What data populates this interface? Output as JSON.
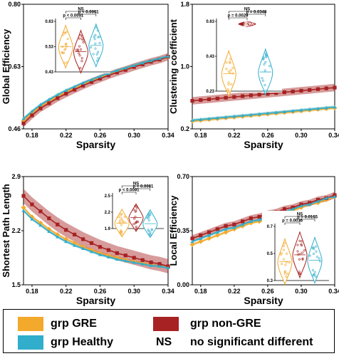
{
  "colors": {
    "gre": "#f3a92c",
    "nongre": "#a72222",
    "healthy": "#30aecb"
  },
  "chart_data": [
    {
      "type": "line",
      "panel": "global-efficiency",
      "xlabel": "Sparsity",
      "ylabel": "Global Efficiency",
      "xlim": [
        0.17,
        0.34
      ],
      "ylim": [
        0.46,
        0.8
      ],
      "xticks": [
        "0.18",
        "0.22",
        "0.26",
        "0.30",
        "0.34"
      ],
      "yticks": [
        "0.46",
        "0.63",
        "0.80"
      ],
      "x": [
        0.17,
        0.18,
        0.19,
        0.2,
        0.21,
        0.22,
        0.23,
        0.24,
        0.25,
        0.26,
        0.27,
        0.28,
        0.29,
        0.3,
        0.31,
        0.32,
        0.33,
        0.34
      ],
      "series": [
        {
          "name": "grp GRE",
          "values": [
            0.482,
            0.503,
            0.521,
            0.535,
            0.549,
            0.561,
            0.572,
            0.582,
            0.592,
            0.601,
            0.609,
            0.617,
            0.624,
            0.631,
            0.638,
            0.644,
            0.65,
            0.656
          ]
        },
        {
          "name": "grp non-GRE",
          "values": [
            0.475,
            0.497,
            0.516,
            0.53,
            0.544,
            0.556,
            0.567,
            0.578,
            0.588,
            0.597,
            0.606,
            0.614,
            0.621,
            0.629,
            0.636,
            0.643,
            0.649,
            0.657
          ]
        },
        {
          "name": "grp Healthy",
          "values": [
            0.488,
            0.508,
            0.526,
            0.54,
            0.553,
            0.565,
            0.575,
            0.585,
            0.594,
            0.603,
            0.611,
            0.619,
            0.626,
            0.633,
            0.64,
            0.646,
            0.652,
            0.658
          ]
        }
      ],
      "inset": {
        "ylim": [
          0.43,
          0.63
        ],
        "yticks": [
          "0.43",
          "0.53",
          "0.63"
        ],
        "medians": [
          0.53,
          0.51,
          0.535
        ],
        "annotations": [
          "NS",
          "p < 0.0001",
          "p < 0.0001"
        ]
      }
    },
    {
      "type": "line",
      "panel": "clustering-coefficient",
      "xlabel": "Sparsity",
      "ylabel": "Clustering coefficient",
      "xlim": [
        0.17,
        0.34
      ],
      "ylim": [
        0.2,
        1.8
      ],
      "xticks": [
        "0.18",
        "0.22",
        "0.26",
        "0.30",
        "0.34"
      ],
      "yticks": [
        "0.2",
        "1.0",
        "1.8"
      ],
      "x": [
        0.17,
        0.18,
        0.19,
        0.2,
        0.21,
        0.22,
        0.23,
        0.24,
        0.25,
        0.26,
        0.27,
        0.28,
        0.29,
        0.3,
        0.31,
        0.32,
        0.33,
        0.34
      ],
      "series": [
        {
          "name": "grp GRE",
          "values": [
            0.3,
            0.31,
            0.32,
            0.33,
            0.34,
            0.35,
            0.36,
            0.37,
            0.38,
            0.39,
            0.4,
            0.41,
            0.42,
            0.43,
            0.44,
            0.45,
            0.46,
            0.47
          ]
        },
        {
          "name": "grp non-GRE",
          "values": [
            0.56,
            0.57,
            0.58,
            0.59,
            0.6,
            0.61,
            0.62,
            0.63,
            0.64,
            0.65,
            0.66,
            0.67,
            0.68,
            0.69,
            0.7,
            0.71,
            0.72,
            0.73
          ]
        },
        {
          "name": "grp Healthy",
          "values": [
            0.31,
            0.32,
            0.33,
            0.34,
            0.35,
            0.36,
            0.37,
            0.38,
            0.39,
            0.4,
            0.41,
            0.42,
            0.43,
            0.44,
            0.45,
            0.46,
            0.47,
            0.48
          ]
        }
      ],
      "inset": {
        "ylim": [
          0.23,
          0.63
        ],
        "yticks": [
          "0.23",
          "0.43",
          "0.63"
        ],
        "medians": [
          0.33,
          0.615,
          0.34
        ],
        "annotations": [
          "NS",
          "p = 0.0020",
          "p = 0.0348"
        ]
      }
    },
    {
      "type": "line",
      "panel": "shortest-path-length",
      "xlabel": "Sparsity",
      "ylabel": "Shortest Path Length",
      "xlim": [
        0.17,
        0.34
      ],
      "ylim": [
        1.5,
        2.9
      ],
      "xticks": [
        "0.18",
        "0.22",
        "0.26",
        "0.30",
        "0.34"
      ],
      "yticks": [
        "1.5",
        "2.2",
        "2.9"
      ],
      "x": [
        0.17,
        0.18,
        0.19,
        0.2,
        0.21,
        0.22,
        0.23,
        0.24,
        0.25,
        0.26,
        0.27,
        0.28,
        0.29,
        0.3,
        0.31,
        0.32,
        0.33,
        0.34
      ],
      "series": [
        {
          "name": "grp GRE",
          "values": [
            2.5,
            2.38,
            2.3,
            2.22,
            2.15,
            2.09,
            2.04,
            1.99,
            1.95,
            1.91,
            1.88,
            1.85,
            1.82,
            1.8,
            1.78,
            1.76,
            1.74,
            1.73
          ]
        },
        {
          "name": "grp non-GRE",
          "values": [
            2.65,
            2.54,
            2.45,
            2.36,
            2.28,
            2.21,
            2.15,
            2.09,
            2.04,
            1.99,
            1.95,
            1.91,
            1.88,
            1.85,
            1.82,
            1.79,
            1.77,
            1.74
          ]
        },
        {
          "name": "grp Healthy",
          "values": [
            2.46,
            2.35,
            2.27,
            2.19,
            2.12,
            2.06,
            2.01,
            1.97,
            1.93,
            1.89,
            1.86,
            1.83,
            1.81,
            1.79,
            1.77,
            1.75,
            1.74,
            1.72
          ]
        }
      ],
      "inset": {
        "ylim": [
          1.9,
          2.5
        ],
        "yticks": [
          "1.9",
          "2.2",
          "2.5"
        ],
        "medians": [
          2.0,
          2.1,
          1.99
        ],
        "annotations": [
          "NS",
          "p < 0.0001",
          "p < 0.0001"
        ]
      }
    },
    {
      "type": "line",
      "panel": "local-efficiency",
      "xlabel": "Sparsity",
      "ylabel": "Local Efficiency",
      "xlim": [
        0.17,
        0.34
      ],
      "ylim": [
        0.0,
        0.7
      ],
      "xticks": [
        "0.18",
        "0.22",
        "0.26",
        "0.30",
        "0.34"
      ],
      "yticks": [
        "0.00",
        "0.35",
        "0.70"
      ],
      "x": [
        0.17,
        0.18,
        0.19,
        0.2,
        0.21,
        0.22,
        0.23,
        0.24,
        0.25,
        0.26,
        0.27,
        0.28,
        0.29,
        0.3,
        0.31,
        0.32,
        0.33,
        0.34
      ],
      "series": [
        {
          "name": "grp GRE",
          "values": [
            0.26,
            0.28,
            0.3,
            0.32,
            0.34,
            0.36,
            0.38,
            0.4,
            0.41,
            0.43,
            0.45,
            0.47,
            0.48,
            0.5,
            0.52,
            0.53,
            0.55,
            0.57
          ]
        },
        {
          "name": "grp non-GRE",
          "values": [
            0.3,
            0.32,
            0.34,
            0.36,
            0.38,
            0.39,
            0.41,
            0.43,
            0.44,
            0.46,
            0.47,
            0.49,
            0.5,
            0.52,
            0.53,
            0.55,
            0.56,
            0.58
          ]
        },
        {
          "name": "grp Healthy",
          "values": [
            0.28,
            0.3,
            0.32,
            0.34,
            0.36,
            0.37,
            0.39,
            0.41,
            0.42,
            0.44,
            0.46,
            0.47,
            0.49,
            0.51,
            0.52,
            0.54,
            0.56,
            0.57
          ]
        }
      ],
      "inset": {
        "ylim": [
          0.3,
          0.7
        ],
        "yticks": [
          "0.3",
          "0.5",
          "0.7"
        ],
        "medians": [
          0.44,
          0.49,
          0.45
        ],
        "annotations": [
          "NS",
          "p = 0.0016",
          "p = 0.0165"
        ]
      }
    }
  ],
  "legend": {
    "gre_label": "grp GRE",
    "nongre_label": "grp non-GRE",
    "healthy_label": "grp Healthy",
    "ns_label": "NS",
    "ns_text": "no significant different"
  }
}
